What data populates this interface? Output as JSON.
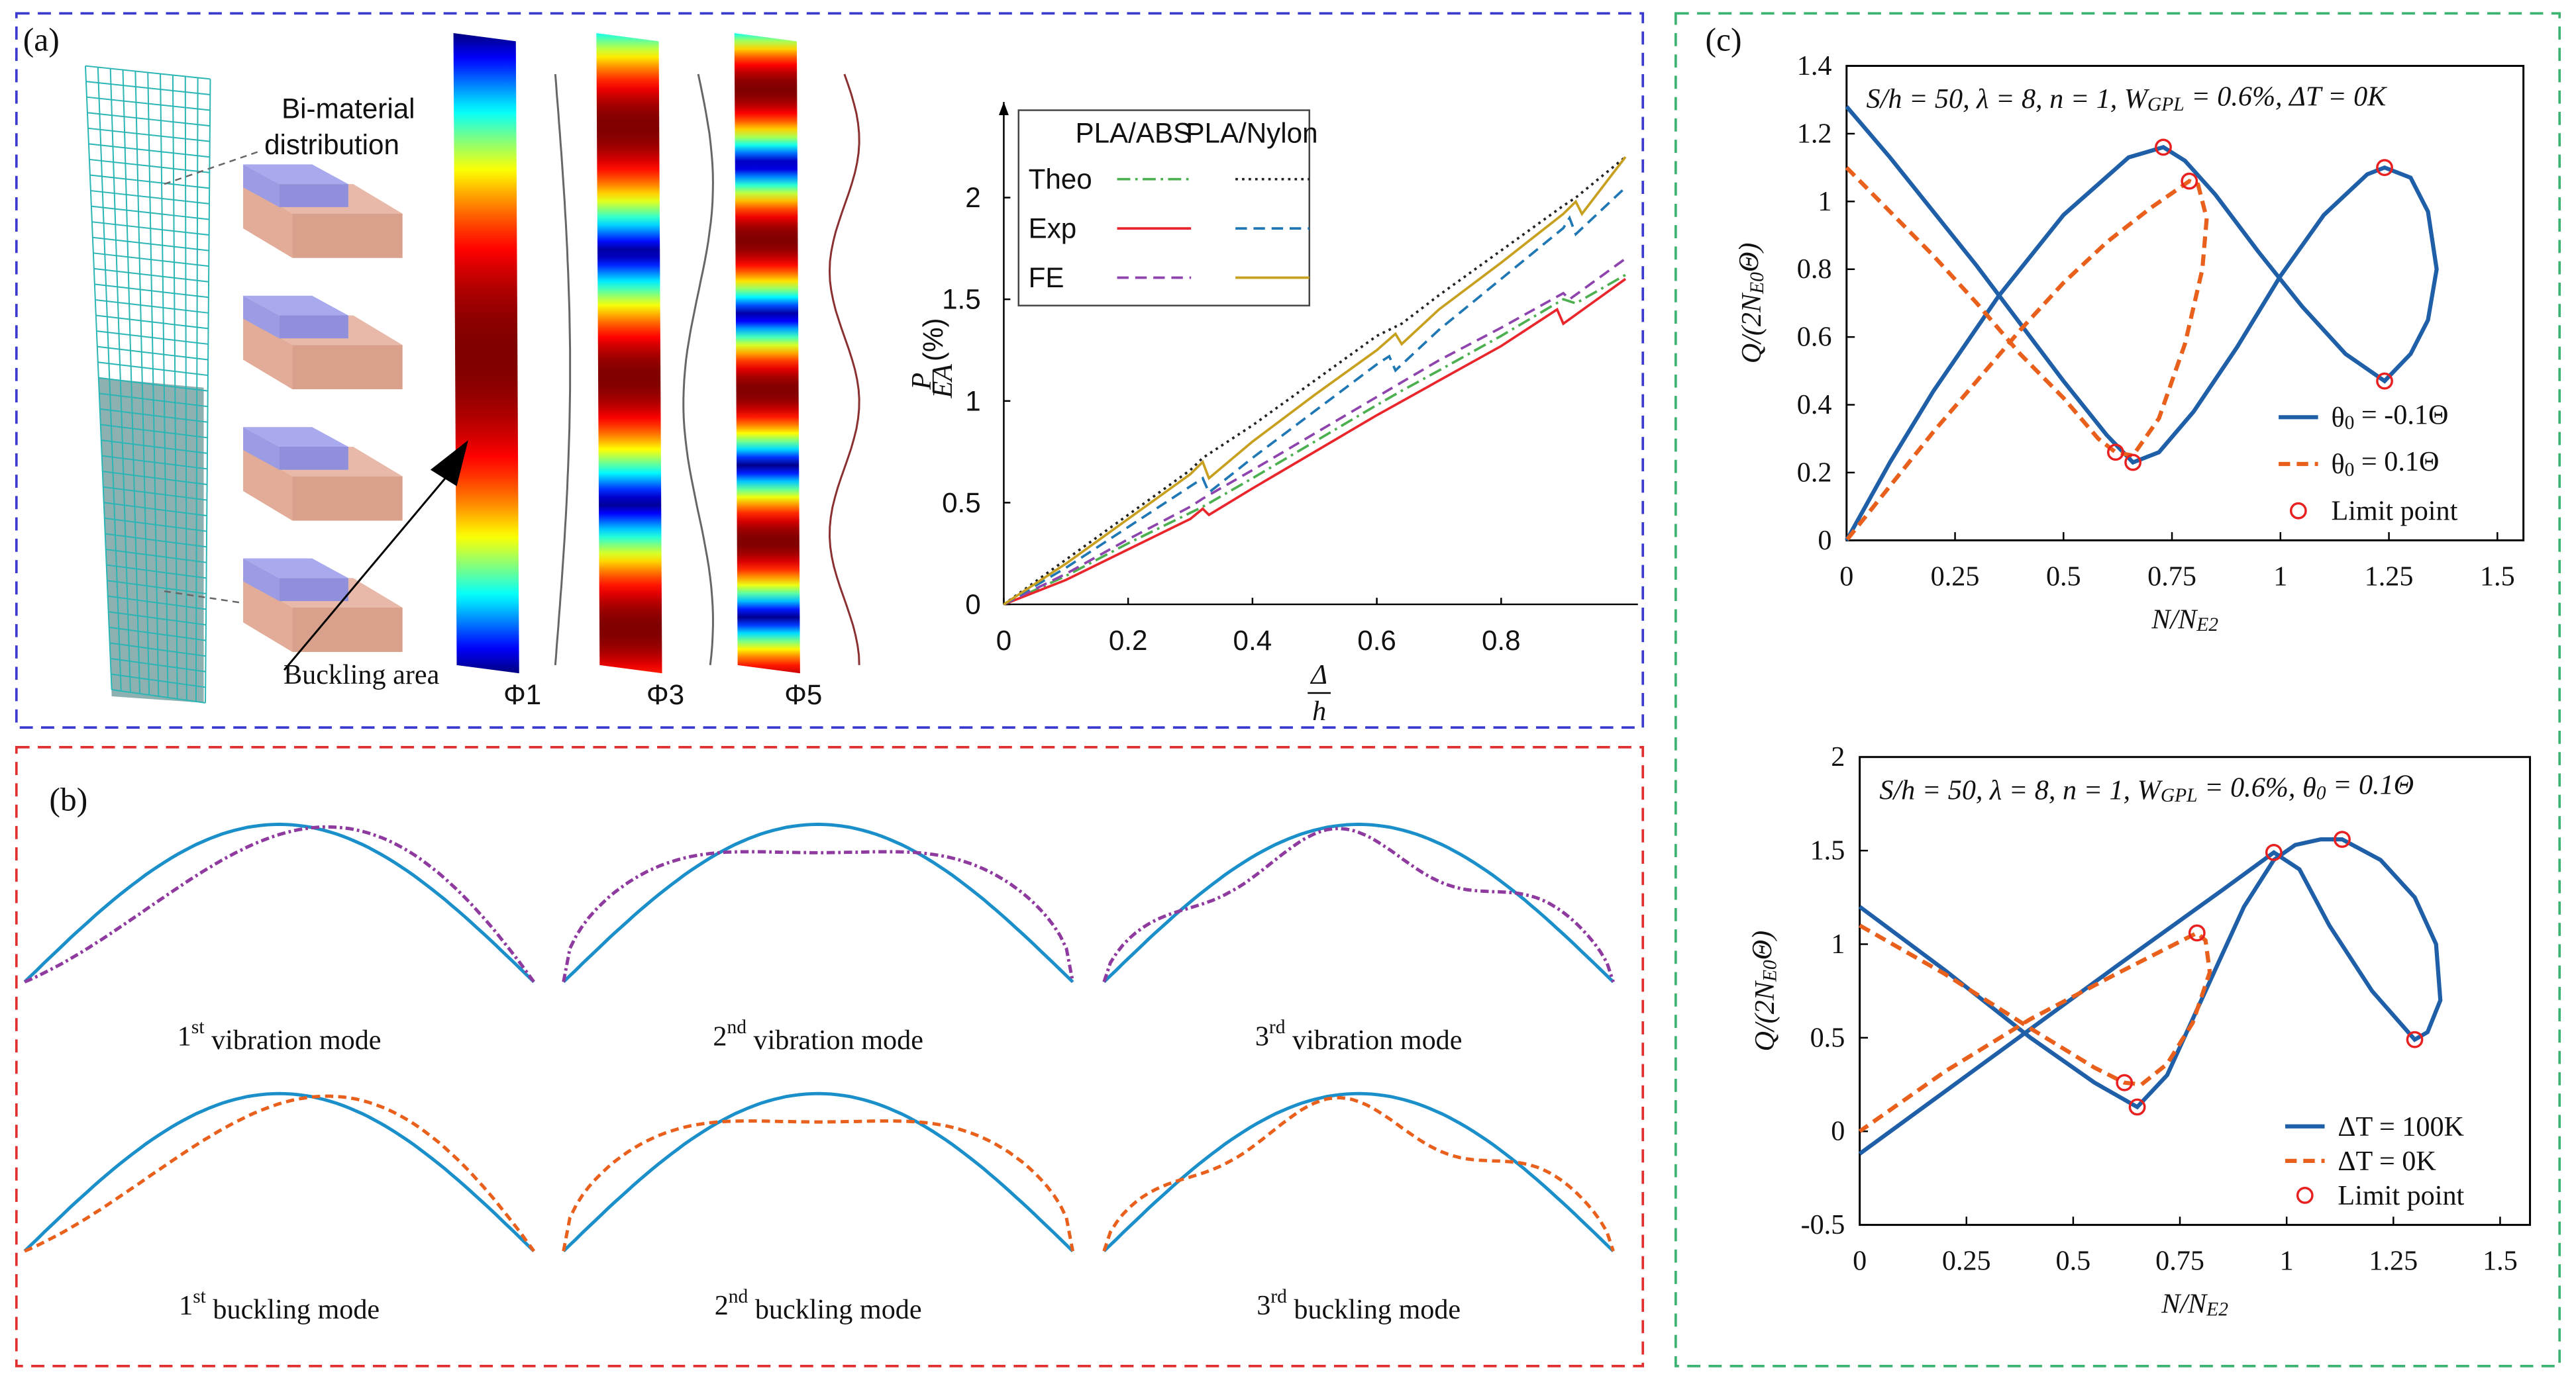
{
  "panels": {
    "a": {
      "label": "(a)",
      "illustration": {
        "distribution": [
          "Bi-material",
          "distribution"
        ],
        "buckling": "Buckling area",
        "modes": [
          "Φ1",
          "Φ3",
          "Φ5"
        ]
      }
    },
    "b": {
      "label": "(b)",
      "modes": [
        [
          "1",
          "st",
          " vibration mode"
        ],
        [
          "2",
          "nd",
          " vibration mode"
        ],
        [
          "3",
          "rd",
          " vibration mode"
        ],
        [
          "1",
          "st",
          " buckling mode"
        ],
        [
          "2",
          "nd",
          " buckling mode"
        ],
        [
          "3",
          "rd",
          " buckling mode"
        ]
      ]
    },
    "c": {
      "label": "(c)"
    }
  },
  "chart_data": [
    {
      "type": "line",
      "xlabel": {
        "num": "Δ",
        "den": "h"
      },
      "ylabel": {
        "num": "P",
        "den": "EA",
        "unit": "(%)"
      },
      "xlim": [
        0,
        1.02
      ],
      "xticks": [
        0,
        0.2,
        0.4,
        0.6,
        0.8
      ],
      "ylim": [
        0,
        2.47
      ],
      "yticks": [
        0,
        0.5,
        1,
        1.5,
        2
      ],
      "legend": {
        "columns": [
          "PLA/ABS",
          "PLA/Nylon"
        ],
        "rows": [
          "Theo",
          "Exp",
          "FE"
        ]
      },
      "series": [
        [
          {
            "color": "#4caf50",
            "dash": "dashdot",
            "x": [
              0,
              0.1,
              0.2,
              0.3,
              0.32,
              0.4,
              0.5,
              0.6,
              0.64,
              0.7,
              0.8,
              0.9,
              0.92,
              1.0
            ],
            "values": [
              0,
              0.14,
              0.3,
              0.45,
              0.48,
              0.62,
              0.8,
              0.98,
              1.05,
              1.15,
              1.32,
              1.5,
              1.48,
              1.62
            ]
          },
          {
            "color": "#e8262b",
            "dash": "solid",
            "x": [
              0,
              0.1,
              0.2,
              0.3,
              0.32,
              0.33,
              0.4,
              0.5,
              0.6,
              0.7,
              0.8,
              0.89,
              0.9,
              1.0
            ],
            "values": [
              0,
              0.12,
              0.27,
              0.42,
              0.47,
              0.44,
              0.57,
              0.75,
              0.93,
              1.1,
              1.27,
              1.45,
              1.38,
              1.6
            ]
          },
          {
            "color": "#8e44ad",
            "dash": "dashed",
            "x": [
              0,
              0.1,
              0.2,
              0.3,
              0.32,
              0.4,
              0.5,
              0.6,
              0.7,
              0.8,
              0.9,
              0.91,
              1.0
            ],
            "values": [
              0,
              0.15,
              0.32,
              0.48,
              0.52,
              0.66,
              0.84,
              1.02,
              1.2,
              1.36,
              1.53,
              1.5,
              1.7
            ]
          }
        ],
        [
          {
            "color": "#222222",
            "dash": "dotted",
            "x": [
              0,
              0.1,
              0.2,
              0.3,
              0.32,
              0.4,
              0.5,
              0.6,
              0.64,
              0.7,
              0.8,
              0.9,
              0.92,
              1.0
            ],
            "values": [
              0,
              0.22,
              0.44,
              0.66,
              0.72,
              0.88,
              1.1,
              1.32,
              1.38,
              1.52,
              1.74,
              1.96,
              2.0,
              2.2
            ]
          },
          {
            "color": "#1f77b4",
            "dash": "dashed",
            "x": [
              0,
              0.1,
              0.2,
              0.3,
              0.32,
              0.33,
              0.4,
              0.5,
              0.6,
              0.62,
              0.63,
              0.7,
              0.8,
              0.9,
              0.91,
              0.92,
              1.0
            ],
            "values": [
              0,
              0.18,
              0.38,
              0.58,
              0.62,
              0.55,
              0.72,
              0.95,
              1.18,
              1.22,
              1.15,
              1.35,
              1.6,
              1.85,
              1.9,
              1.82,
              2.05
            ]
          },
          {
            "color": "#c8a020",
            "dash": "solid",
            "x": [
              0,
              0.1,
              0.2,
              0.3,
              0.32,
              0.33,
              0.4,
              0.5,
              0.6,
              0.63,
              0.64,
              0.7,
              0.8,
              0.9,
              0.92,
              0.93,
              1.0
            ],
            "values": [
              0,
              0.2,
              0.42,
              0.64,
              0.7,
              0.62,
              0.8,
              1.03,
              1.25,
              1.33,
              1.28,
              1.45,
              1.68,
              1.92,
              1.98,
              1.92,
              2.2
            ]
          }
        ]
      ]
    },
    {
      "type": "line",
      "annotation": [
        "S/h = 50, λ = 8, n = 1, W",
        "GPL",
        " = 0.6%, ΔT = 0K"
      ],
      "xlabel": [
        "N/N",
        "E2"
      ],
      "ylabel": [
        "Q/(2N",
        "E0",
        "Θ)"
      ],
      "xlim": [
        0,
        1.56
      ],
      "xticks": [
        0,
        0.25,
        0.5,
        0.75,
        1,
        1.25,
        1.5
      ],
      "ylim": [
        0,
        1.4
      ],
      "yticks": [
        0,
        0.2,
        0.4,
        0.6,
        0.8,
        1,
        1.2,
        1.4
      ],
      "legend": "lower right",
      "series": [
        {
          "name": [
            "θ",
            "0",
            " = -0.1Θ"
          ],
          "color": "#1f5fa8",
          "dash": "solid",
          "x": [
            0,
            0.1,
            0.2,
            0.3,
            0.4,
            0.5,
            0.6,
            0.66,
            0.72,
            0.8,
            0.9,
            1.0,
            1.1,
            1.2,
            1.24,
            1.3,
            1.34,
            1.36,
            1.34,
            1.3,
            1.24,
            1.15,
            1.05,
            0.95,
            0.85,
            0.78,
            0.73,
            0.65,
            0.5,
            0.35,
            0.2,
            0.1,
            0
          ],
          "values": [
            1.28,
            1.13,
            0.97,
            0.81,
            0.64,
            0.47,
            0.31,
            0.23,
            0.26,
            0.38,
            0.57,
            0.78,
            0.96,
            1.08,
            1.1,
            1.07,
            0.97,
            0.8,
            0.65,
            0.55,
            0.47,
            0.55,
            0.69,
            0.85,
            1.02,
            1.12,
            1.16,
            1.13,
            0.96,
            0.72,
            0.44,
            0.23,
            0
          ]
        },
        {
          "name": [
            "θ",
            "0",
            " = 0.1Θ"
          ],
          "color": "#e8601c",
          "dash": "dashed",
          "x": [
            0,
            0.1,
            0.2,
            0.3,
            0.4,
            0.5,
            0.58,
            0.62,
            0.66,
            0.72,
            0.78,
            0.82,
            0.83,
            0.81,
            0.79,
            0.7,
            0.6,
            0.5,
            0.4,
            0.3,
            0.2,
            0.1,
            0
          ],
          "values": [
            1.1,
            0.97,
            0.84,
            0.7,
            0.55,
            0.42,
            0.3,
            0.26,
            0.25,
            0.36,
            0.58,
            0.8,
            0.95,
            1.05,
            1.06,
            0.98,
            0.88,
            0.76,
            0.62,
            0.47,
            0.32,
            0.16,
            0
          ]
        },
        {
          "name": [
            "Limit point"
          ],
          "color": "#e82020",
          "marker": "circle",
          "x": [
            0.62,
            0.66,
            0.73,
            0.79,
            1.24,
            1.24
          ],
          "values": [
            0.26,
            0.23,
            1.16,
            1.06,
            1.1,
            0.47
          ]
        }
      ]
    },
    {
      "type": "line",
      "annotation": [
        "S/h = 50, λ = 8, n = 1, W",
        "GPL",
        " = 0.6%, θ",
        "0",
        " = 0.1Θ"
      ],
      "xlabel": [
        "N/N",
        "E2"
      ],
      "ylabel": [
        "Q/(2N",
        "E0",
        "Θ)"
      ],
      "xlim": [
        0,
        1.57
      ],
      "xticks": [
        0,
        0.25,
        0.5,
        0.75,
        1,
        1.25,
        1.5
      ],
      "ylim": [
        -0.5,
        2
      ],
      "yticks": [
        -0.5,
        0,
        0.5,
        1,
        1.5,
        2
      ],
      "legend": "lower right",
      "series": [
        {
          "name": [
            "ΔT = 100K"
          ],
          "color": "#1f5fa8",
          "dash": "solid",
          "x": [
            0,
            0.2,
            0.4,
            0.55,
            0.65,
            0.72,
            0.8,
            0.9,
            0.97,
            1.02,
            1.08,
            1.13,
            1.22,
            1.3,
            1.35,
            1.36,
            1.33,
            1.3,
            1.2,
            1.1,
            1.03,
            0.97,
            0.85,
            0.6,
            0.3,
            0
          ],
          "values": [
            1.2,
            0.86,
            0.5,
            0.26,
            0.13,
            0.3,
            0.7,
            1.2,
            1.45,
            1.53,
            1.56,
            1.56,
            1.45,
            1.25,
            1.0,
            0.7,
            0.53,
            0.49,
            0.75,
            1.1,
            1.4,
            1.49,
            1.29,
            0.88,
            0.38,
            -0.12
          ]
        },
        {
          "name": [
            "ΔT = 0K"
          ],
          "color": "#e8601c",
          "dash": "dashed",
          "x": [
            0,
            0.2,
            0.4,
            0.55,
            0.62,
            0.66,
            0.72,
            0.78,
            0.82,
            0.81,
            0.79,
            0.6,
            0.4,
            0.2,
            0
          ],
          "values": [
            1.1,
            0.84,
            0.55,
            0.34,
            0.26,
            0.25,
            0.36,
            0.58,
            0.85,
            1.02,
            1.06,
            0.84,
            0.6,
            0.32,
            0
          ]
        },
        {
          "name": [
            "Limit point"
          ],
          "color": "#e82020",
          "marker": "circle",
          "x": [
            0.62,
            0.65,
            0.79,
            0.97,
            1.13,
            1.3
          ],
          "values": [
            0.26,
            0.13,
            1.06,
            1.49,
            1.56,
            0.49
          ]
        }
      ]
    }
  ]
}
